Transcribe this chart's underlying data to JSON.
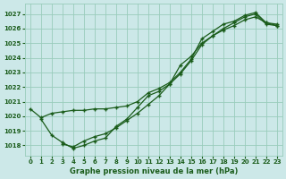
{
  "background_color": "#cce8e8",
  "grid_color": "#99ccbb",
  "line_color": "#1a5c1a",
  "title": "Graphe pression niveau de la mer (hPa)",
  "xlim": [
    -0.5,
    23.5
  ],
  "ylim": [
    1017.3,
    1027.7
  ],
  "yticks": [
    1018,
    1019,
    1020,
    1021,
    1022,
    1023,
    1024,
    1025,
    1026,
    1027
  ],
  "xticks": [
    0,
    1,
    2,
    3,
    4,
    5,
    6,
    7,
    8,
    9,
    10,
    11,
    12,
    13,
    14,
    15,
    16,
    17,
    18,
    19,
    20,
    21,
    22,
    23
  ],
  "series1_x": [
    0,
    1,
    2,
    3,
    4,
    5,
    6,
    7,
    8,
    9,
    10,
    11,
    12,
    13,
    14,
    15,
    16,
    17,
    18,
    19,
    20,
    21,
    22,
    23
  ],
  "series1_y": [
    1020.5,
    1019.9,
    1020.2,
    1020.3,
    1020.4,
    1020.4,
    1020.5,
    1020.5,
    1020.6,
    1020.7,
    1021.0,
    1021.6,
    1021.9,
    1022.3,
    1023.0,
    1023.9,
    1025.3,
    1025.8,
    1026.3,
    1026.5,
    1026.9,
    1027.1,
    1026.4,
    1026.3
  ],
  "series2_x": [
    1,
    2,
    3,
    4,
    5,
    6,
    7,
    8,
    9,
    10,
    11,
    12,
    13,
    14,
    15,
    16,
    17,
    18,
    19,
    20,
    21,
    22,
    23
  ],
  "series2_y": [
    1019.8,
    1018.7,
    1018.2,
    1017.8,
    1018.0,
    1018.3,
    1018.5,
    1019.3,
    1019.8,
    1020.6,
    1021.4,
    1021.7,
    1022.2,
    1022.9,
    1023.8,
    1024.9,
    1025.5,
    1026.0,
    1026.4,
    1026.8,
    1027.0,
    1026.3,
    1026.2
  ],
  "series3_x": [
    3,
    4,
    5,
    6,
    7,
    8,
    9,
    10,
    11,
    12,
    13,
    14,
    15,
    16,
    17,
    18,
    19,
    20,
    21,
    22,
    23
  ],
  "series3_y": [
    1018.1,
    1017.9,
    1018.3,
    1018.6,
    1018.8,
    1019.2,
    1019.7,
    1020.2,
    1020.8,
    1021.4,
    1022.2,
    1023.5,
    1024.1,
    1025.0,
    1025.5,
    1025.9,
    1026.2,
    1026.6,
    1026.8,
    1026.4,
    1026.2
  ]
}
